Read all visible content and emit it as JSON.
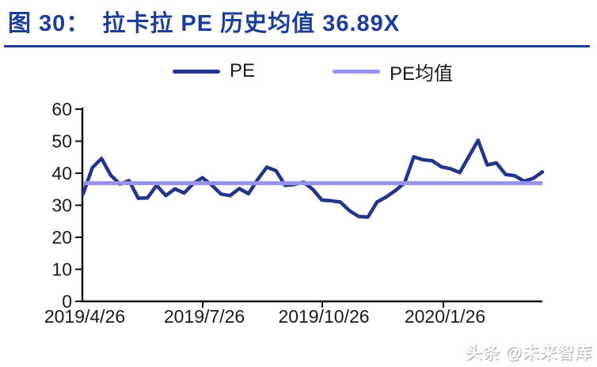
{
  "title": {
    "figure_label": "图 30：",
    "text": "拉卡拉 PE 历史均值 36.89X"
  },
  "watermark": "头条 @未来智库",
  "chart_data": {
    "type": "line",
    "title": "拉卡拉 PE 历史均值 36.89X",
    "x": [
      "2019/4/26",
      "2019/5/3",
      "2019/5/10",
      "2019/5/17",
      "2019/5/24",
      "2019/5/31",
      "2019/6/7",
      "2019/6/14",
      "2019/6/21",
      "2019/6/28",
      "2019/7/5",
      "2019/7/12",
      "2019/7/19",
      "2019/7/26",
      "2019/8/2",
      "2019/8/9",
      "2019/8/16",
      "2019/8/23",
      "2019/8/30",
      "2019/9/6",
      "2019/9/13",
      "2019/9/20",
      "2019/9/27",
      "2019/10/4",
      "2019/10/11",
      "2019/10/18",
      "2019/10/25",
      "2019/11/1",
      "2019/11/8",
      "2019/11/15",
      "2019/11/22",
      "2019/11/29",
      "2019/12/6",
      "2019/12/13",
      "2019/12/20",
      "2019/12/27",
      "2020/1/3",
      "2020/1/10",
      "2020/1/17",
      "2020/1/24",
      "2020/1/31",
      "2020/2/7",
      "2020/2/14",
      "2020/2/21",
      "2020/2/28",
      "2020/3/6",
      "2020/3/13",
      "2020/3/20",
      "2020/3/27",
      "2020/4/3",
      "2020/4/10"
    ],
    "series": [
      {
        "name": "PE",
        "color": "#243589",
        "values": [
          33.5,
          41.7,
          44.6,
          39.4,
          36.6,
          37.7,
          32.2,
          32.3,
          36.2,
          33.0,
          35.1,
          33.8,
          36.8,
          38.6,
          36.3,
          33.5,
          33.0,
          35.2,
          33.6,
          38.0,
          41.9,
          40.8,
          36.2,
          36.5,
          37.2,
          35.0,
          31.6,
          31.4,
          31.0,
          28.3,
          26.5,
          26.3,
          31.0,
          32.6,
          34.6,
          37.0,
          45.1,
          44.2,
          43.9,
          42.0,
          41.4,
          40.2,
          45.2,
          50.3,
          42.6,
          43.2,
          39.6,
          39.2,
          37.5,
          38.4,
          40.4
        ]
      },
      {
        "name": "PE均值",
        "color": "#9793ED",
        "value": 36.89
      }
    ],
    "xticks": [
      "2019/4/26",
      "2019/7/26",
      "2019/10/26",
      "2020/1/26"
    ],
    "yticks": [
      0,
      10,
      20,
      30,
      40,
      50,
      60
    ],
    "ylim": [
      0,
      60
    ],
    "grid": false,
    "legend_position": "top-center"
  }
}
